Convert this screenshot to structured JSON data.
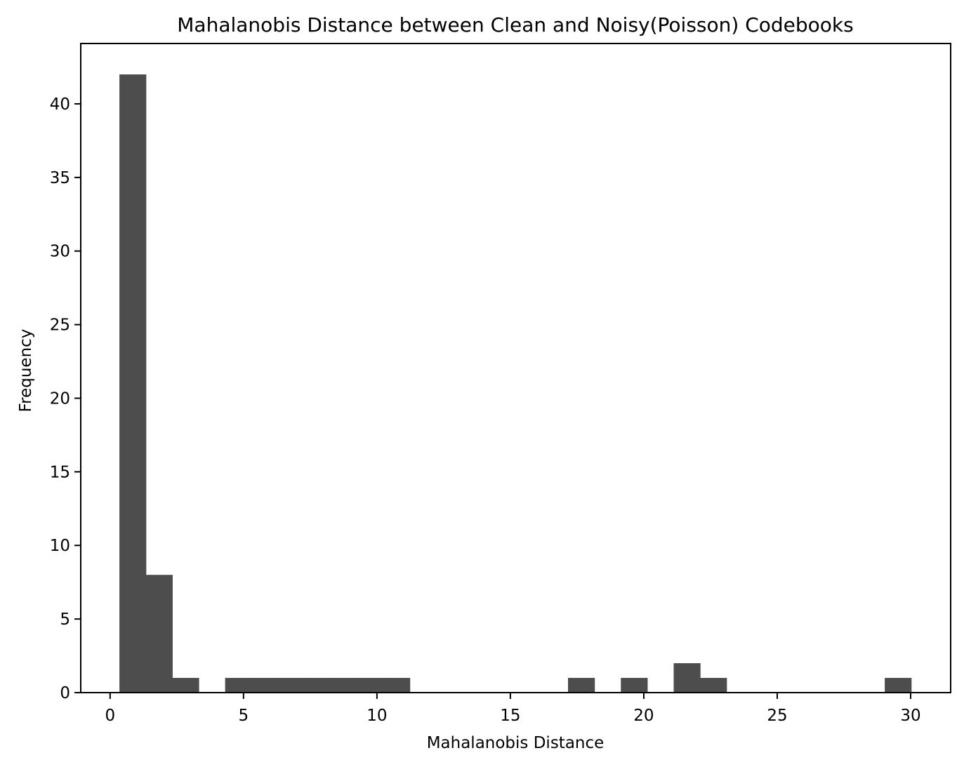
{
  "chart_data": {
    "type": "bar",
    "title": "Mahalanobis Distance between Clean and Noisy(Poisson) Codebooks",
    "xlabel": "Mahalanobis Distance",
    "ylabel": "Frequency",
    "xlim": [
      -1.1,
      31.5
    ],
    "ylim": [
      0,
      44.1
    ],
    "xticks": [
      0,
      5,
      10,
      15,
      20,
      25,
      30
    ],
    "yticks": [
      0,
      5,
      10,
      15,
      20,
      25,
      30,
      35,
      40
    ],
    "bar_color": "#4d4d4d",
    "grid": false,
    "bins": [
      {
        "x0": 0.35,
        "x1": 1.34,
        "count": 42
      },
      {
        "x0": 1.34,
        "x1": 2.33,
        "count": 8
      },
      {
        "x0": 2.33,
        "x1": 3.32,
        "count": 1
      },
      {
        "x0": 3.32,
        "x1": 4.31,
        "count": 0
      },
      {
        "x0": 4.31,
        "x1": 5.3,
        "count": 1
      },
      {
        "x0": 5.3,
        "x1": 6.28,
        "count": 1
      },
      {
        "x0": 6.28,
        "x1": 7.27,
        "count": 1
      },
      {
        "x0": 7.27,
        "x1": 8.26,
        "count": 1
      },
      {
        "x0": 8.26,
        "x1": 9.25,
        "count": 1
      },
      {
        "x0": 9.25,
        "x1": 10.24,
        "count": 1
      },
      {
        "x0": 10.24,
        "x1": 11.23,
        "count": 1
      },
      {
        "x0": 11.23,
        "x1": 12.22,
        "count": 0
      },
      {
        "x0": 12.22,
        "x1": 13.21,
        "count": 0
      },
      {
        "x0": 13.21,
        "x1": 14.2,
        "count": 0
      },
      {
        "x0": 14.2,
        "x1": 15.19,
        "count": 0
      },
      {
        "x0": 15.19,
        "x1": 16.17,
        "count": 0
      },
      {
        "x0": 16.17,
        "x1": 17.16,
        "count": 0
      },
      {
        "x0": 17.16,
        "x1": 18.15,
        "count": 1
      },
      {
        "x0": 18.15,
        "x1": 19.14,
        "count": 0
      },
      {
        "x0": 19.14,
        "x1": 20.13,
        "count": 1
      },
      {
        "x0": 20.13,
        "x1": 21.12,
        "count": 0
      },
      {
        "x0": 21.12,
        "x1": 22.11,
        "count": 2
      },
      {
        "x0": 22.11,
        "x1": 23.1,
        "count": 1
      },
      {
        "x0": 23.1,
        "x1": 24.09,
        "count": 0
      },
      {
        "x0": 24.09,
        "x1": 25.08,
        "count": 0
      },
      {
        "x0": 25.08,
        "x1": 26.06,
        "count": 0
      },
      {
        "x0": 26.06,
        "x1": 27.05,
        "count": 0
      },
      {
        "x0": 27.05,
        "x1": 28.04,
        "count": 0
      },
      {
        "x0": 28.04,
        "x1": 29.03,
        "count": 0
      },
      {
        "x0": 29.03,
        "x1": 30.02,
        "count": 1
      }
    ]
  }
}
